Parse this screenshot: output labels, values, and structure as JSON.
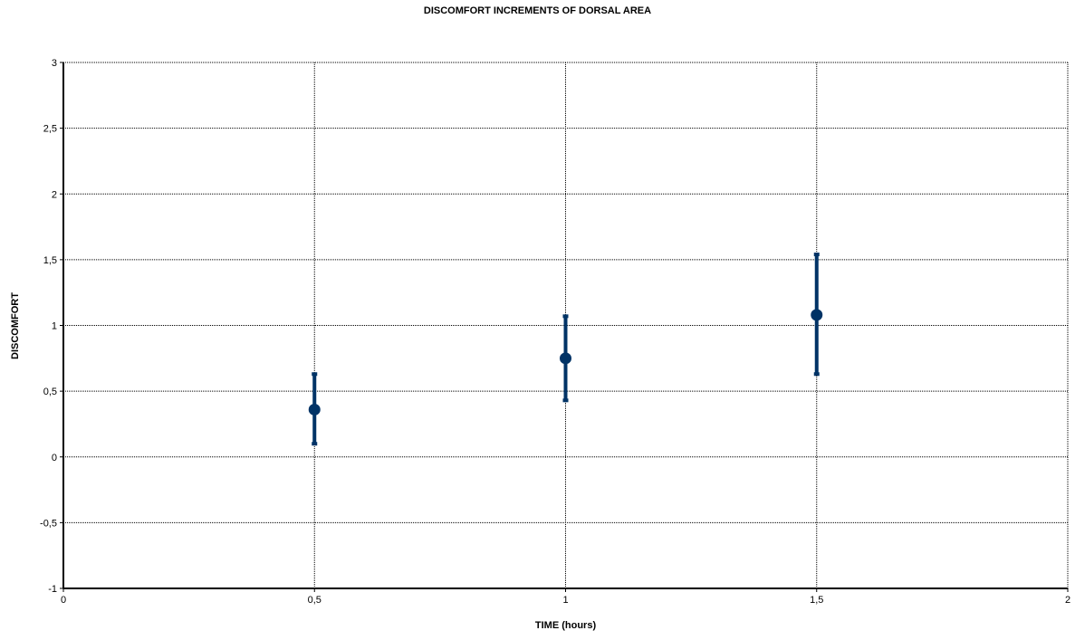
{
  "chart_data": {
    "type": "scatter",
    "title": "DISCOMFORT INCREMENTS OF DORSAL AREA",
    "xlabel": "TIME (hours)",
    "ylabel": "DISCOMFORT",
    "xlim": [
      0,
      2
    ],
    "ylim": [
      -1,
      3
    ],
    "x_ticks": [
      0,
      0.5,
      1,
      1.5,
      2
    ],
    "x_tick_labels": [
      "0",
      "0,5",
      "1",
      "1,5",
      "2"
    ],
    "y_ticks": [
      -1,
      -0.5,
      0,
      0.5,
      1,
      1.5,
      2,
      2.5,
      3
    ],
    "y_tick_labels": [
      "-1",
      "-0,5",
      "0",
      "0,5",
      "1",
      "1,5",
      "2",
      "2,5",
      "3"
    ],
    "grid": true,
    "color": "#003366",
    "series": [
      {
        "points": [
          {
            "x": 0.5,
            "y": 0.36,
            "low": 0.1,
            "high": 0.63
          },
          {
            "x": 1.0,
            "y": 0.75,
            "low": 0.43,
            "high": 1.07
          },
          {
            "x": 1.5,
            "y": 1.08,
            "low": 0.63,
            "high": 1.54
          }
        ]
      }
    ]
  }
}
